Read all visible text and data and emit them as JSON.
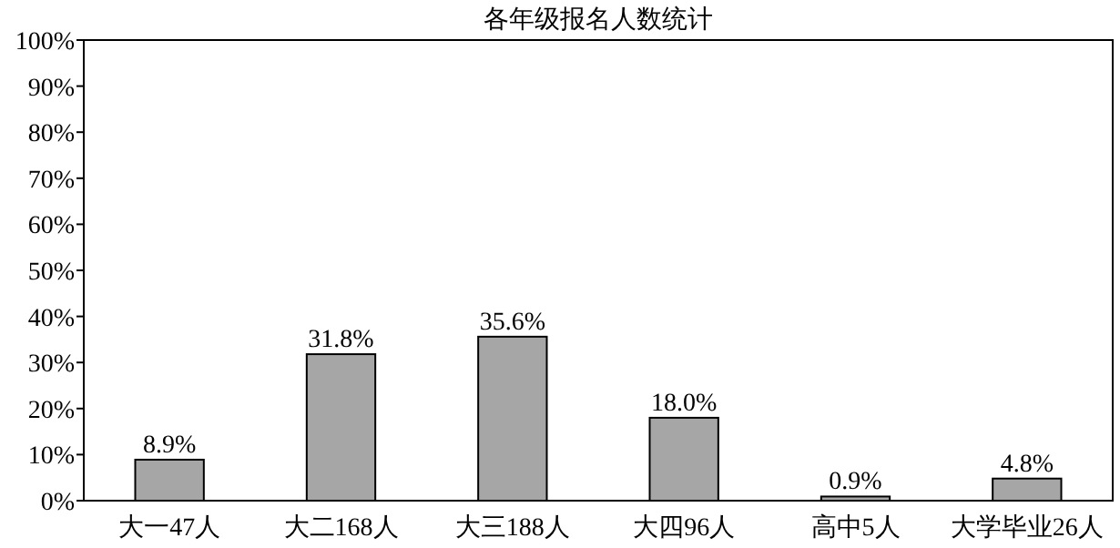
{
  "chart_data": {
    "type": "bar",
    "title": "各年级报名人数统计",
    "categories": [
      "大一47人",
      "大二168人",
      "大三188人",
      "大四96人",
      "高中5人",
      "大学毕业26人"
    ],
    "values": [
      8.9,
      31.8,
      35.6,
      18.0,
      0.9,
      4.8
    ],
    "value_labels": [
      "8.9%",
      "31.8%",
      "35.6%",
      "18.0%",
      "0.9%",
      "4.8%"
    ],
    "color": "#a6a6a6",
    "ylim": [
      0,
      100
    ],
    "yticks": [
      {
        "value": 0,
        "label": "0%"
      },
      {
        "value": 10,
        "label": "10%"
      },
      {
        "value": 20,
        "label": "20%"
      },
      {
        "value": 30,
        "label": "30%"
      },
      {
        "value": 40,
        "label": "40%"
      },
      {
        "value": 50,
        "label": "50%"
      },
      {
        "value": 60,
        "label": "60%"
      },
      {
        "value": 70,
        "label": "70%"
      },
      {
        "value": 80,
        "label": "80%"
      },
      {
        "value": 90,
        "label": "90%"
      },
      {
        "value": 100,
        "label": "100%"
      }
    ],
    "grid": false
  }
}
